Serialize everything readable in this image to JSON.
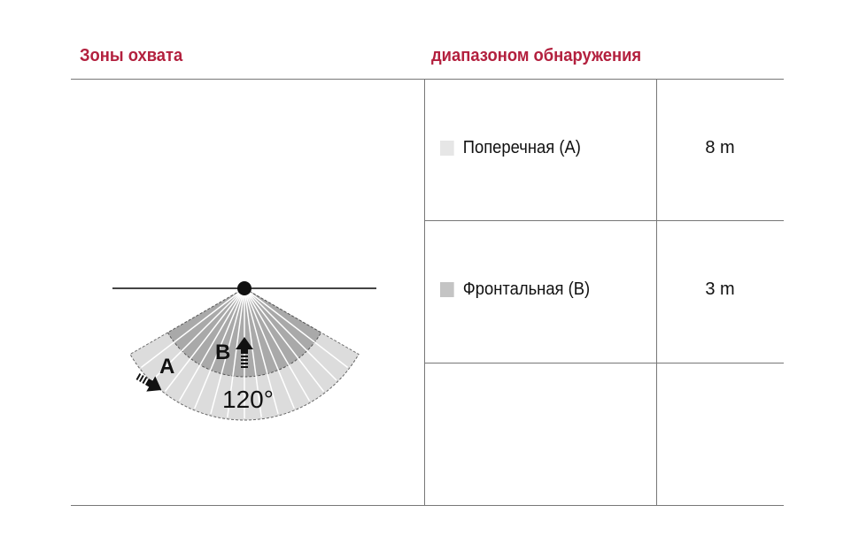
{
  "headers": {
    "zones": "Зоны охвата",
    "range": "диапазоном обнаружения"
  },
  "rows": [
    {
      "label": "Поперечная (A)",
      "value": "8 m",
      "swatch_color": "#e6e6e6"
    },
    {
      "label": "Фронтальная (B)",
      "value": "3 m",
      "swatch_color": "#c4c4c4"
    }
  ],
  "diagram": {
    "zone_a_label": "A",
    "zone_b_label": "B",
    "angle_label": "120°",
    "angle_degrees": 120,
    "zone_a_color": "#dcdcdc",
    "zone_b_color": "#a9a9a9"
  },
  "accent_color": "#b3203e"
}
